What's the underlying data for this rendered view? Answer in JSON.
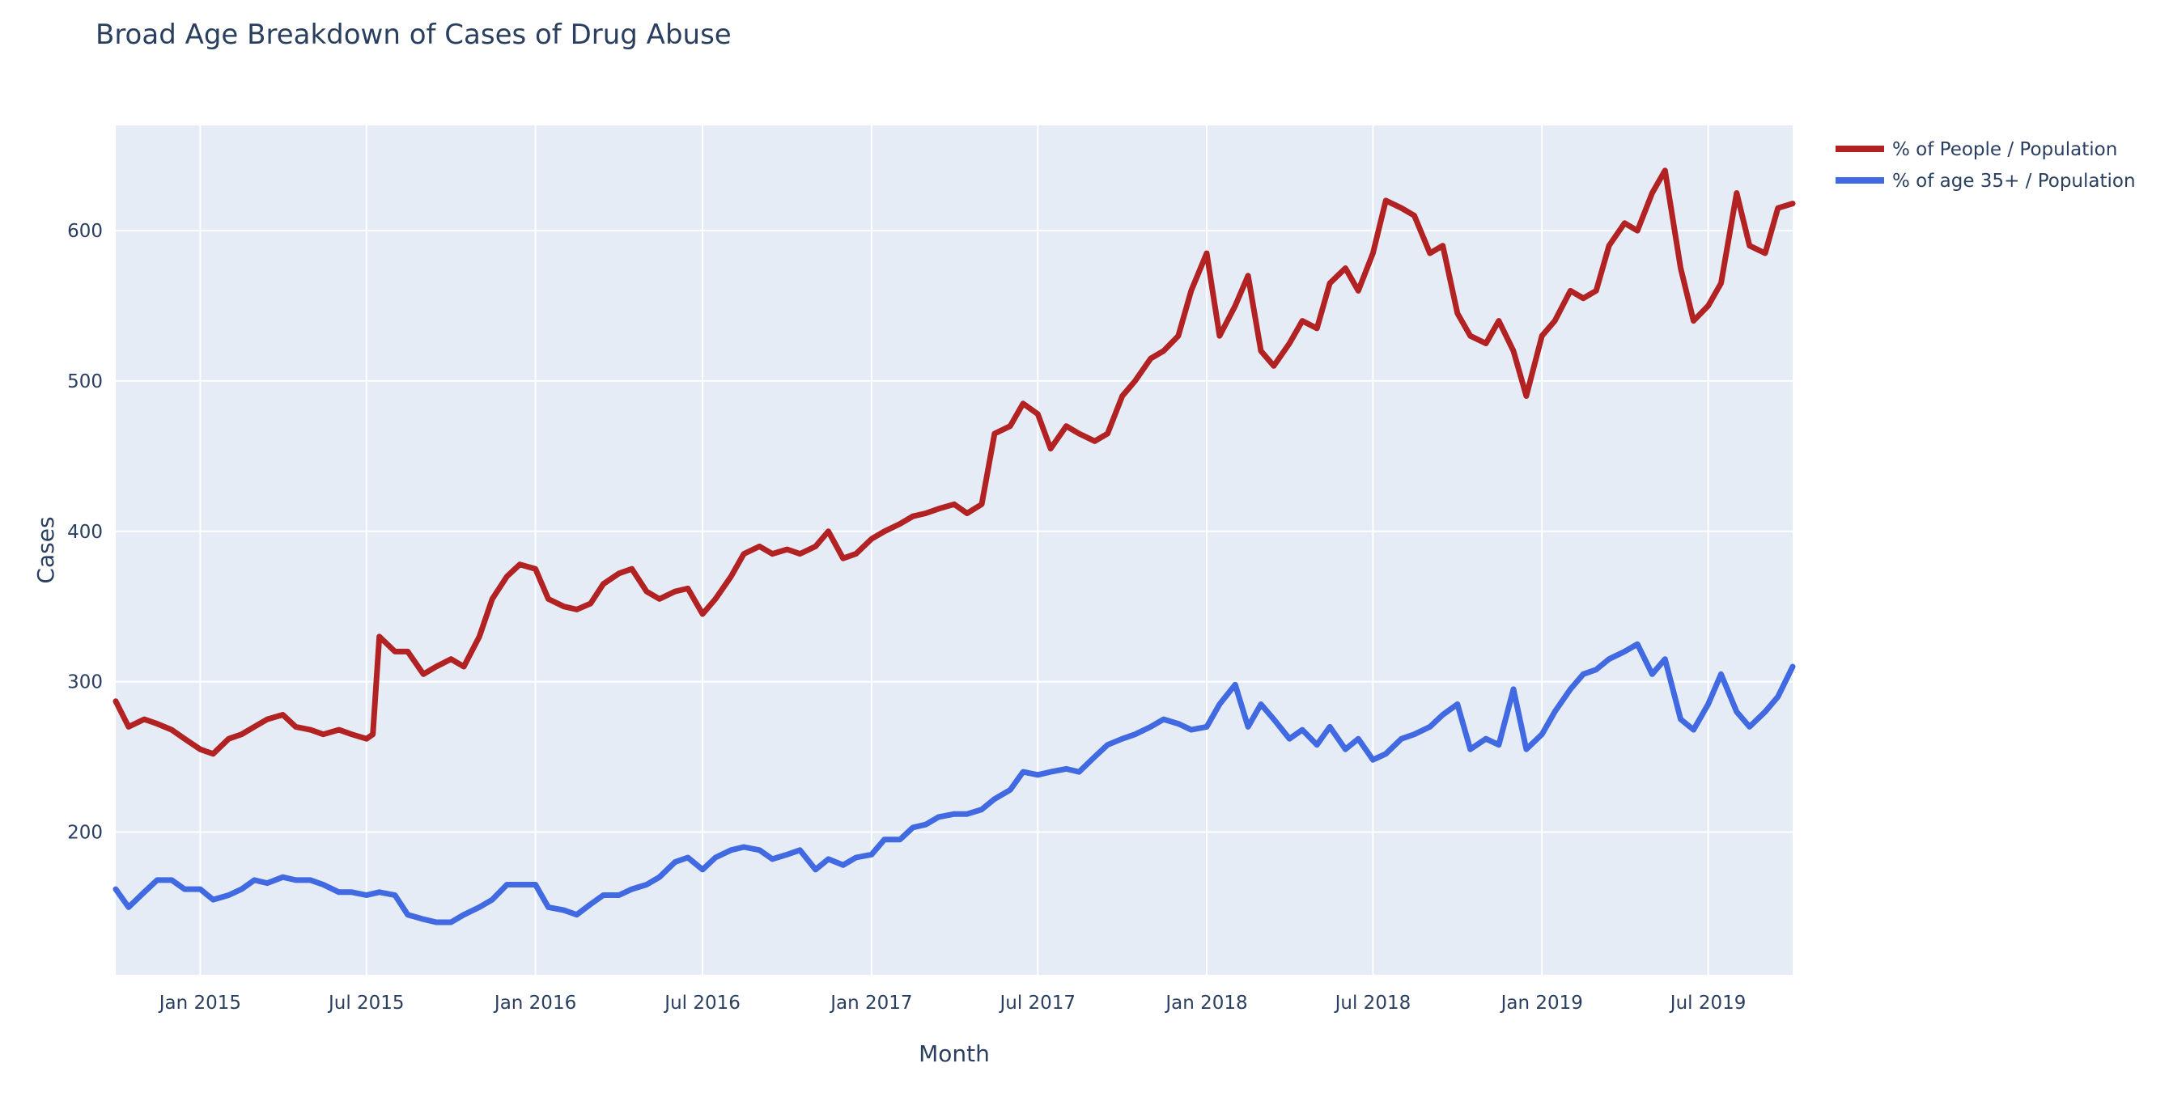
{
  "chart_data": {
    "type": "line",
    "title": "Broad Age Breakdown of Cases of Drug Abuse",
    "xlabel": "Month",
    "ylabel": "Cases",
    "x_range": [
      "2014-10-01",
      "2019-10-01"
    ],
    "ylim": [
      105,
      670
    ],
    "y_ticks": [
      200,
      300,
      400,
      500,
      600
    ],
    "x_ticks": [
      {
        "date": "2015-01-01",
        "label": "Jan 2015"
      },
      {
        "date": "2015-07-01",
        "label": "Jul 2015"
      },
      {
        "date": "2016-01-01",
        "label": "Jan 2016"
      },
      {
        "date": "2016-07-01",
        "label": "Jul 2016"
      },
      {
        "date": "2017-01-01",
        "label": "Jan 2017"
      },
      {
        "date": "2017-07-01",
        "label": "Jul 2017"
      },
      {
        "date": "2018-01-01",
        "label": "Jan 2018"
      },
      {
        "date": "2018-07-01",
        "label": "Jul 2018"
      },
      {
        "date": "2019-01-01",
        "label": "Jan 2019"
      },
      {
        "date": "2019-07-01",
        "label": "Jul 2019"
      }
    ],
    "grid": true,
    "legend_position": "top-right",
    "plot_bgcolor": "#e5ecf6",
    "series": [
      {
        "name": "% of People / Population",
        "color": "#b22222",
        "points": [
          [
            "2014-10-01",
            287
          ],
          [
            "2014-10-15",
            270
          ],
          [
            "2014-11-01",
            275
          ],
          [
            "2014-11-15",
            272
          ],
          [
            "2014-12-01",
            268
          ],
          [
            "2014-12-15",
            262
          ],
          [
            "2015-01-01",
            255
          ],
          [
            "2015-01-15",
            252
          ],
          [
            "2015-02-01",
            262
          ],
          [
            "2015-02-15",
            265
          ],
          [
            "2015-03-01",
            270
          ],
          [
            "2015-03-15",
            275
          ],
          [
            "2015-04-01",
            278
          ],
          [
            "2015-04-15",
            270
          ],
          [
            "2015-05-01",
            268
          ],
          [
            "2015-05-15",
            265
          ],
          [
            "2015-06-01",
            268
          ],
          [
            "2015-06-15",
            265
          ],
          [
            "2015-07-01",
            262
          ],
          [
            "2015-07-08",
            265
          ],
          [
            "2015-07-15",
            330
          ],
          [
            "2015-08-01",
            320
          ],
          [
            "2015-08-15",
            320
          ],
          [
            "2015-09-01",
            305
          ],
          [
            "2015-09-15",
            310
          ],
          [
            "2015-10-01",
            315
          ],
          [
            "2015-10-15",
            310
          ],
          [
            "2015-11-01",
            330
          ],
          [
            "2015-11-15",
            355
          ],
          [
            "2015-12-01",
            370
          ],
          [
            "2015-12-15",
            378
          ],
          [
            "2016-01-01",
            375
          ],
          [
            "2016-01-15",
            355
          ],
          [
            "2016-02-01",
            350
          ],
          [
            "2016-02-15",
            348
          ],
          [
            "2016-03-01",
            352
          ],
          [
            "2016-03-15",
            365
          ],
          [
            "2016-04-01",
            372
          ],
          [
            "2016-04-15",
            375
          ],
          [
            "2016-05-01",
            360
          ],
          [
            "2016-05-15",
            355
          ],
          [
            "2016-06-01",
            360
          ],
          [
            "2016-06-15",
            362
          ],
          [
            "2016-07-01",
            345
          ],
          [
            "2016-07-15",
            355
          ],
          [
            "2016-08-01",
            370
          ],
          [
            "2016-08-15",
            385
          ],
          [
            "2016-09-01",
            390
          ],
          [
            "2016-09-15",
            385
          ],
          [
            "2016-10-01",
            388
          ],
          [
            "2016-10-15",
            385
          ],
          [
            "2016-11-01",
            390
          ],
          [
            "2016-11-15",
            400
          ],
          [
            "2016-12-01",
            382
          ],
          [
            "2016-12-15",
            385
          ],
          [
            "2017-01-01",
            395
          ],
          [
            "2017-01-15",
            400
          ],
          [
            "2017-02-01",
            405
          ],
          [
            "2017-02-15",
            410
          ],
          [
            "2017-03-01",
            412
          ],
          [
            "2017-03-15",
            415
          ],
          [
            "2017-04-01",
            418
          ],
          [
            "2017-04-15",
            412
          ],
          [
            "2017-05-01",
            418
          ],
          [
            "2017-05-15",
            465
          ],
          [
            "2017-06-01",
            470
          ],
          [
            "2017-06-15",
            485
          ],
          [
            "2017-07-01",
            478
          ],
          [
            "2017-07-15",
            455
          ],
          [
            "2017-08-01",
            470
          ],
          [
            "2017-08-15",
            465
          ],
          [
            "2017-09-01",
            460
          ],
          [
            "2017-09-15",
            465
          ],
          [
            "2017-10-01",
            490
          ],
          [
            "2017-10-15",
            500
          ],
          [
            "2017-11-01",
            515
          ],
          [
            "2017-11-15",
            520
          ],
          [
            "2017-12-01",
            530
          ],
          [
            "2017-12-15",
            560
          ],
          [
            "2018-01-01",
            585
          ],
          [
            "2018-01-15",
            530
          ],
          [
            "2018-02-01",
            550
          ],
          [
            "2018-02-15",
            570
          ],
          [
            "2018-03-01",
            520
          ],
          [
            "2018-03-15",
            510
          ],
          [
            "2018-04-01",
            525
          ],
          [
            "2018-04-15",
            540
          ],
          [
            "2018-05-01",
            535
          ],
          [
            "2018-05-15",
            565
          ],
          [
            "2018-06-01",
            575
          ],
          [
            "2018-06-15",
            560
          ],
          [
            "2018-07-01",
            585
          ],
          [
            "2018-07-15",
            620
          ],
          [
            "2018-08-01",
            615
          ],
          [
            "2018-08-15",
            610
          ],
          [
            "2018-09-01",
            585
          ],
          [
            "2018-09-15",
            590
          ],
          [
            "2018-10-01",
            545
          ],
          [
            "2018-10-15",
            530
          ],
          [
            "2018-11-01",
            525
          ],
          [
            "2018-11-15",
            540
          ],
          [
            "2018-12-01",
            520
          ],
          [
            "2018-12-15",
            490
          ],
          [
            "2019-01-01",
            530
          ],
          [
            "2019-01-15",
            540
          ],
          [
            "2019-02-01",
            560
          ],
          [
            "2019-02-15",
            555
          ],
          [
            "2019-03-01",
            560
          ],
          [
            "2019-03-15",
            590
          ],
          [
            "2019-04-01",
            605
          ],
          [
            "2019-04-15",
            600
          ],
          [
            "2019-05-01",
            625
          ],
          [
            "2019-05-15",
            640
          ],
          [
            "2019-06-01",
            575
          ],
          [
            "2019-06-15",
            540
          ],
          [
            "2019-07-01",
            550
          ],
          [
            "2019-07-15",
            565
          ],
          [
            "2019-08-01",
            625
          ],
          [
            "2019-08-15",
            590
          ],
          [
            "2019-09-01",
            585
          ],
          [
            "2019-09-15",
            615
          ],
          [
            "2019-10-01",
            618
          ]
        ]
      },
      {
        "name": "% of age 35+ / Population",
        "color": "#4169e1",
        "points": [
          [
            "2014-10-01",
            162
          ],
          [
            "2014-10-15",
            150
          ],
          [
            "2014-11-01",
            160
          ],
          [
            "2014-11-15",
            168
          ],
          [
            "2014-12-01",
            168
          ],
          [
            "2014-12-15",
            162
          ],
          [
            "2015-01-01",
            162
          ],
          [
            "2015-01-15",
            155
          ],
          [
            "2015-02-01",
            158
          ],
          [
            "2015-02-15",
            162
          ],
          [
            "2015-03-01",
            168
          ],
          [
            "2015-03-15",
            166
          ],
          [
            "2015-04-01",
            170
          ],
          [
            "2015-04-15",
            168
          ],
          [
            "2015-05-01",
            168
          ],
          [
            "2015-05-15",
            165
          ],
          [
            "2015-06-01",
            160
          ],
          [
            "2015-06-15",
            160
          ],
          [
            "2015-07-01",
            158
          ],
          [
            "2015-07-15",
            160
          ],
          [
            "2015-08-01",
            158
          ],
          [
            "2015-08-15",
            145
          ],
          [
            "2015-09-01",
            142
          ],
          [
            "2015-09-15",
            140
          ],
          [
            "2015-10-01",
            140
          ],
          [
            "2015-10-15",
            145
          ],
          [
            "2015-11-01",
            150
          ],
          [
            "2015-11-15",
            155
          ],
          [
            "2015-12-01",
            165
          ],
          [
            "2015-12-15",
            165
          ],
          [
            "2016-01-01",
            165
          ],
          [
            "2016-01-15",
            150
          ],
          [
            "2016-02-01",
            148
          ],
          [
            "2016-02-15",
            145
          ],
          [
            "2016-03-01",
            152
          ],
          [
            "2016-03-15",
            158
          ],
          [
            "2016-04-01",
            158
          ],
          [
            "2016-04-15",
            162
          ],
          [
            "2016-05-01",
            165
          ],
          [
            "2016-05-15",
            170
          ],
          [
            "2016-06-01",
            180
          ],
          [
            "2016-06-15",
            183
          ],
          [
            "2016-07-01",
            175
          ],
          [
            "2016-07-15",
            183
          ],
          [
            "2016-08-01",
            188
          ],
          [
            "2016-08-15",
            190
          ],
          [
            "2016-09-01",
            188
          ],
          [
            "2016-09-15",
            182
          ],
          [
            "2016-10-01",
            185
          ],
          [
            "2016-10-15",
            188
          ],
          [
            "2016-11-01",
            175
          ],
          [
            "2016-11-15",
            182
          ],
          [
            "2016-12-01",
            178
          ],
          [
            "2016-12-15",
            183
          ],
          [
            "2017-01-01",
            185
          ],
          [
            "2017-01-15",
            195
          ],
          [
            "2017-02-01",
            195
          ],
          [
            "2017-02-15",
            203
          ],
          [
            "2017-03-01",
            205
          ],
          [
            "2017-03-15",
            210
          ],
          [
            "2017-04-01",
            212
          ],
          [
            "2017-04-15",
            212
          ],
          [
            "2017-05-01",
            215
          ],
          [
            "2017-05-15",
            222
          ],
          [
            "2017-06-01",
            228
          ],
          [
            "2017-06-15",
            240
          ],
          [
            "2017-07-01",
            238
          ],
          [
            "2017-07-15",
            240
          ],
          [
            "2017-08-01",
            242
          ],
          [
            "2017-08-15",
            240
          ],
          [
            "2017-09-01",
            250
          ],
          [
            "2017-09-15",
            258
          ],
          [
            "2017-10-01",
            262
          ],
          [
            "2017-10-15",
            265
          ],
          [
            "2017-11-01",
            270
          ],
          [
            "2017-11-15",
            275
          ],
          [
            "2017-12-01",
            272
          ],
          [
            "2017-12-15",
            268
          ],
          [
            "2018-01-01",
            270
          ],
          [
            "2018-01-15",
            285
          ],
          [
            "2018-02-01",
            298
          ],
          [
            "2018-02-15",
            270
          ],
          [
            "2018-03-01",
            285
          ],
          [
            "2018-03-15",
            275
          ],
          [
            "2018-04-01",
            262
          ],
          [
            "2018-04-15",
            268
          ],
          [
            "2018-05-01",
            258
          ],
          [
            "2018-05-15",
            270
          ],
          [
            "2018-06-01",
            255
          ],
          [
            "2018-06-15",
            262
          ],
          [
            "2018-07-01",
            248
          ],
          [
            "2018-07-15",
            252
          ],
          [
            "2018-08-01",
            262
          ],
          [
            "2018-08-15",
            265
          ],
          [
            "2018-09-01",
            270
          ],
          [
            "2018-09-15",
            278
          ],
          [
            "2018-10-01",
            285
          ],
          [
            "2018-10-15",
            255
          ],
          [
            "2018-11-01",
            262
          ],
          [
            "2018-11-15",
            258
          ],
          [
            "2018-12-01",
            295
          ],
          [
            "2018-12-15",
            255
          ],
          [
            "2019-01-01",
            265
          ],
          [
            "2019-01-15",
            280
          ],
          [
            "2019-02-01",
            295
          ],
          [
            "2019-02-15",
            305
          ],
          [
            "2019-03-01",
            308
          ],
          [
            "2019-03-15",
            315
          ],
          [
            "2019-04-01",
            320
          ],
          [
            "2019-04-15",
            325
          ],
          [
            "2019-05-01",
            305
          ],
          [
            "2019-05-15",
            315
          ],
          [
            "2019-06-01",
            275
          ],
          [
            "2019-06-15",
            268
          ],
          [
            "2019-07-01",
            285
          ],
          [
            "2019-07-15",
            305
          ],
          [
            "2019-08-01",
            280
          ],
          [
            "2019-08-15",
            270
          ],
          [
            "2019-09-01",
            280
          ],
          [
            "2019-09-15",
            290
          ],
          [
            "2019-10-01",
            310
          ]
        ]
      }
    ]
  }
}
